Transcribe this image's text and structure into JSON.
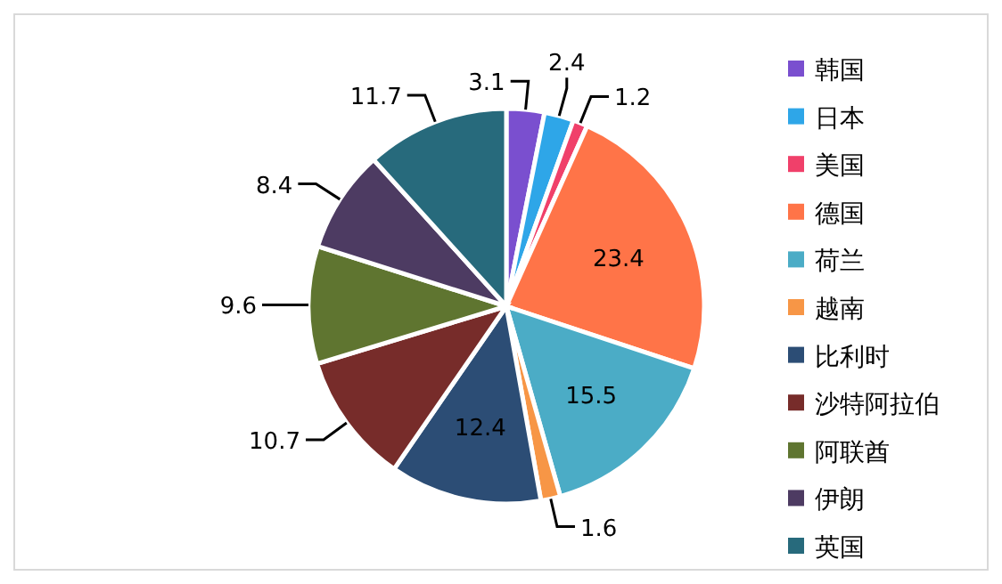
{
  "chart_data": {
    "type": "pie",
    "categories": [
      "韩国",
      "日本",
      "美国",
      "德国",
      "荷兰",
      "越南",
      "比利时",
      "沙特阿拉伯",
      "阿联酋",
      "伊朗",
      "英国"
    ],
    "values": [
      3.1,
      2.4,
      1.2,
      23.4,
      15.5,
      1.6,
      12.4,
      10.7,
      9.6,
      8.4,
      11.7
    ],
    "colors": [
      "#7a4fcf",
      "#2ea6e8",
      "#f0406a",
      "#ff7448",
      "#4bacc6",
      "#f79646",
      "#2c4d75",
      "#772c2a",
      "#5f7530",
      "#4d3b62",
      "#276a7c"
    ],
    "data_labels": true,
    "legend": "right"
  }
}
